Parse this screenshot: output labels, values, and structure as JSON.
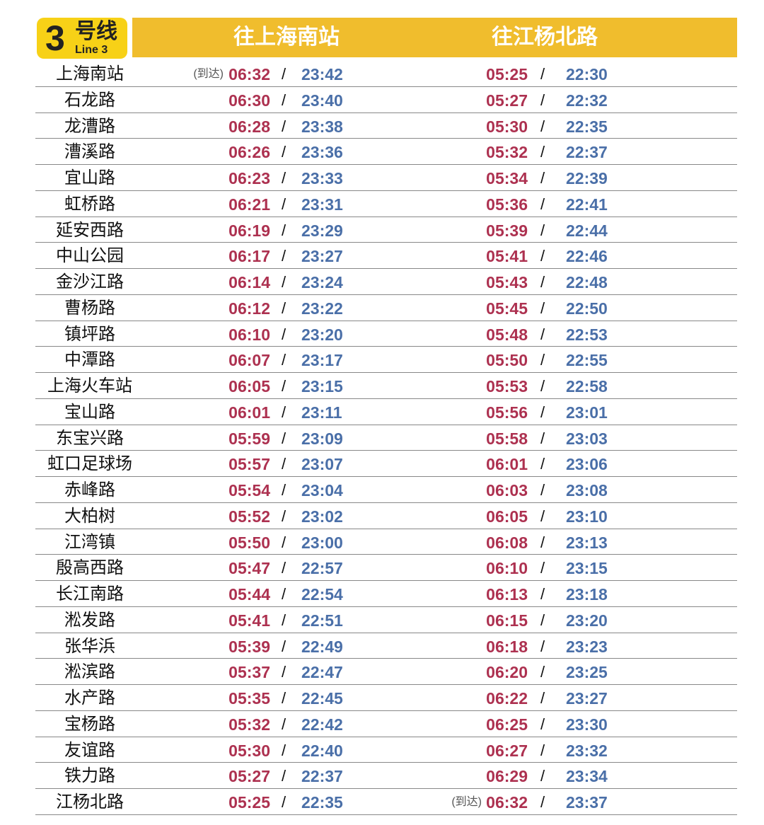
{
  "badge": {
    "number": "3",
    "cn": "号线",
    "en": "Line 3"
  },
  "headers": {
    "dir1": "往上海南站",
    "dir2": "往江杨北路"
  },
  "arrive_label": "(到达)",
  "colors": {
    "first_train": "#ad3150",
    "last_train": "#4a6fa8",
    "header": "#f0bd2d",
    "badge": "#f7d117"
  },
  "rows": [
    {
      "station": "上海南站",
      "d1": [
        "06:32",
        "23:42"
      ],
      "d2": [
        "05:25",
        "22:30"
      ],
      "arr1": true
    },
    {
      "station": "石龙路",
      "d1": [
        "06:30",
        "23:40"
      ],
      "d2": [
        "05:27",
        "22:32"
      ]
    },
    {
      "station": "龙漕路",
      "d1": [
        "06:28",
        "23:38"
      ],
      "d2": [
        "05:30",
        "22:35"
      ]
    },
    {
      "station": "漕溪路",
      "d1": [
        "06:26",
        "23:36"
      ],
      "d2": [
        "05:32",
        "22:37"
      ]
    },
    {
      "station": "宜山路",
      "d1": [
        "06:23",
        "23:33"
      ],
      "d2": [
        "05:34",
        "22:39"
      ]
    },
    {
      "station": "虹桥路",
      "d1": [
        "06:21",
        "23:31"
      ],
      "d2": [
        "05:36",
        "22:41"
      ]
    },
    {
      "station": "延安西路",
      "d1": [
        "06:19",
        "23:29"
      ],
      "d2": [
        "05:39",
        "22:44"
      ]
    },
    {
      "station": "中山公园",
      "d1": [
        "06:17",
        "23:27"
      ],
      "d2": [
        "05:41",
        "22:46"
      ]
    },
    {
      "station": "金沙江路",
      "d1": [
        "06:14",
        "23:24"
      ],
      "d2": [
        "05:43",
        "22:48"
      ]
    },
    {
      "station": "曹杨路",
      "d1": [
        "06:12",
        "23:22"
      ],
      "d2": [
        "05:45",
        "22:50"
      ]
    },
    {
      "station": "镇坪路",
      "d1": [
        "06:10",
        "23:20"
      ],
      "d2": [
        "05:48",
        "22:53"
      ]
    },
    {
      "station": "中潭路",
      "d1": [
        "06:07",
        "23:17"
      ],
      "d2": [
        "05:50",
        "22:55"
      ]
    },
    {
      "station": "上海火车站",
      "d1": [
        "06:05",
        "23:15"
      ],
      "d2": [
        "05:53",
        "22:58"
      ]
    },
    {
      "station": "宝山路",
      "d1": [
        "06:01",
        "23:11"
      ],
      "d2": [
        "05:56",
        "23:01"
      ]
    },
    {
      "station": "东宝兴路",
      "d1": [
        "05:59",
        "23:09"
      ],
      "d2": [
        "05:58",
        "23:03"
      ]
    },
    {
      "station": "虹口足球场",
      "d1": [
        "05:57",
        "23:07"
      ],
      "d2": [
        "06:01",
        "23:06"
      ]
    },
    {
      "station": "赤峰路",
      "d1": [
        "05:54",
        "23:04"
      ],
      "d2": [
        "06:03",
        "23:08"
      ]
    },
    {
      "station": "大柏树",
      "d1": [
        "05:52",
        "23:02"
      ],
      "d2": [
        "06:05",
        "23:10"
      ]
    },
    {
      "station": "江湾镇",
      "d1": [
        "05:50",
        "23:00"
      ],
      "d2": [
        "06:08",
        "23:13"
      ]
    },
    {
      "station": "殷高西路",
      "d1": [
        "05:47",
        "22:57"
      ],
      "d2": [
        "06:10",
        "23:15"
      ]
    },
    {
      "station": "长江南路",
      "d1": [
        "05:44",
        "22:54"
      ],
      "d2": [
        "06:13",
        "23:18"
      ]
    },
    {
      "station": "淞发路",
      "d1": [
        "05:41",
        "22:51"
      ],
      "d2": [
        "06:15",
        "23:20"
      ]
    },
    {
      "station": "张华浜",
      "d1": [
        "05:39",
        "22:49"
      ],
      "d2": [
        "06:18",
        "23:23"
      ]
    },
    {
      "station": "淞滨路",
      "d1": [
        "05:37",
        "22:47"
      ],
      "d2": [
        "06:20",
        "23:25"
      ]
    },
    {
      "station": "水产路",
      "d1": [
        "05:35",
        "22:45"
      ],
      "d2": [
        "06:22",
        "23:27"
      ]
    },
    {
      "station": "宝杨路",
      "d1": [
        "05:32",
        "22:42"
      ],
      "d2": [
        "06:25",
        "23:30"
      ]
    },
    {
      "station": "友谊路",
      "d1": [
        "05:30",
        "22:40"
      ],
      "d2": [
        "06:27",
        "23:32"
      ]
    },
    {
      "station": "铁力路",
      "d1": [
        "05:27",
        "22:37"
      ],
      "d2": [
        "06:29",
        "23:34"
      ]
    },
    {
      "station": "江杨北路",
      "d1": [
        "05:25",
        "22:35"
      ],
      "d2": [
        "06:32",
        "23:37"
      ],
      "arr2": true
    }
  ],
  "separator": "/"
}
